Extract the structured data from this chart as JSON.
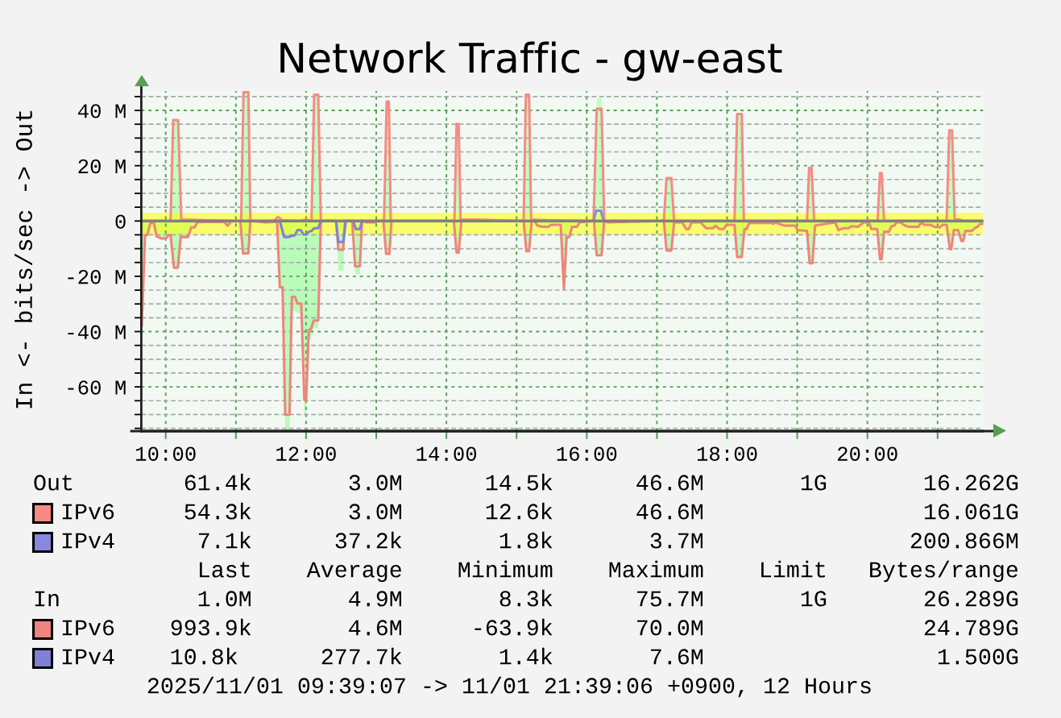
{
  "chart_data": {
    "type": "line",
    "title": "Network Traffic - gw-east",
    "ylabel": "In <- bits/sec -> Out",
    "xlim": [
      9.652,
      21.652
    ],
    "ylim": [
      -76,
      47
    ],
    "xticks": [
      {
        "value": 10,
        "label": "10:00"
      },
      {
        "value": 11,
        "label": null
      },
      {
        "value": 12,
        "label": "12:00"
      },
      {
        "value": 13,
        "label": null
      },
      {
        "value": 14,
        "label": "14:00"
      },
      {
        "value": 15,
        "label": null
      },
      {
        "value": 16,
        "label": "16:00"
      },
      {
        "value": 17,
        "label": null
      },
      {
        "value": 18,
        "label": "18:00"
      },
      {
        "value": 19,
        "label": null
      },
      {
        "value": 20,
        "label": "20:00"
      },
      {
        "value": 21,
        "label": null
      }
    ],
    "yticks": [
      {
        "value": 45,
        "label": null
      },
      {
        "value": 40,
        "label": "40 M"
      },
      {
        "value": 35,
        "label": null
      },
      {
        "value": 30,
        "label": null
      },
      {
        "value": 25,
        "label": null
      },
      {
        "value": 20,
        "label": "20 M"
      },
      {
        "value": 15,
        "label": null
      },
      {
        "value": 10,
        "label": null
      },
      {
        "value": 5,
        "label": null
      },
      0,
      {
        "value": -5,
        "label": null
      },
      {
        "value": -10,
        "label": null
      },
      {
        "value": -15,
        "label": null
      },
      {
        "value": -20,
        "label": "-20 M"
      },
      {
        "value": -25,
        "label": null
      },
      {
        "value": -30,
        "label": null
      },
      {
        "value": -35,
        "label": null
      },
      {
        "value": -40,
        "label": "-40 M"
      },
      {
        "value": -45,
        "label": null
      },
      {
        "value": -50,
        "label": null
      },
      {
        "value": -55,
        "label": null
      },
      {
        "value": -60,
        "label": "-60 M"
      },
      {
        "value": -65,
        "label": null
      },
      {
        "value": -70,
        "label": null
      },
      {
        "value": -75,
        "label": null
      }
    ],
    "grid": true,
    "legend": "bottom",
    "bands": [
      {
        "axis": "y",
        "from": -4.9,
        "to": 3.0,
        "color": "#ffff00"
      }
    ],
    "ref_lines": [
      {
        "axis": "y",
        "value": 0,
        "color": "#808080"
      }
    ],
    "series": [
      {
        "type": "area",
        "color": "#c0ffc0",
        "x": [
          10.069,
          10.107,
          10.176,
          10.222,
          11.075,
          11.109,
          11.178,
          11.206,
          11.542,
          11.599,
          11.657,
          11.909,
          12.001,
          12.078,
          12.116,
          12.173,
          12.211,
          13.111,
          13.149,
          13.18,
          13.207,
          14.114,
          14.145,
          14.175,
          14.202,
          14.412,
          15.101,
          15.132,
          15.178,
          15.208,
          15.446,
          16.097,
          16.142,
          16.211,
          16.249,
          17.099,
          17.137,
          17.206,
          17.245,
          18.106,
          18.144,
          18.209,
          18.239,
          19.139,
          19.169,
          19.203,
          19.242,
          20.145,
          20.179,
          20.202,
          20.237,
          21.129,
          21.167,
          21.206,
          21.243,
          21.32,
          21.358
        ],
        "values": [
          0,
          36.5,
          36.5,
          0.5,
          0,
          46.6,
          46.6,
          0,
          0,
          1.5,
          0.3,
          0,
          0.5,
          0,
          45.7,
          45.7,
          0,
          0,
          43.2,
          43.2,
          0,
          0,
          35.1,
          35.1,
          0.5,
          0.5,
          0,
          45.7,
          45.7,
          0.5,
          0.3,
          0,
          44.3,
          44.3,
          0,
          0,
          15.5,
          15.5,
          0,
          0,
          38.7,
          38.7,
          0,
          0,
          19.2,
          19.2,
          0,
          0,
          17.3,
          17.3,
          0,
          0,
          32.8,
          32.8,
          0.5,
          0.5,
          0
        ]
      },
      {
        "type": "area",
        "color": "#bafaba",
        "x": [
          9.659,
          9.705,
          9.736,
          9.782,
          9.831,
          9.869,
          9.935,
          10.003,
          10.041,
          10.069,
          10.118,
          10.172,
          10.214,
          10.317,
          10.363,
          10.413,
          10.451,
          10.83,
          10.884,
          10.93,
          11.063,
          11.102,
          11.178,
          11.206,
          11.427,
          11.588,
          11.626,
          11.665,
          11.703,
          11.764,
          11.798,
          11.84,
          11.878,
          11.932,
          11.975,
          12.001,
          12.039,
          12.07,
          12.108,
          12.173,
          12.211,
          12.429,
          12.46,
          12.529,
          12.556,
          12.567,
          12.659,
          12.698,
          12.71,
          12.767,
          12.797,
          12.862,
          12.977,
          13.034,
          13.103,
          13.141,
          13.187,
          13.218,
          14.106,
          14.145,
          14.175,
          14.214,
          15.101,
          15.139,
          15.178,
          15.216,
          15.254,
          15.3,
          15.369,
          15.454,
          15.491,
          15.629,
          15.675,
          15.713,
          15.752,
          15.79,
          15.859,
          15.897,
          16.103,
          16.142,
          16.211,
          16.249,
          16.307,
          17.099,
          17.137,
          17.206,
          17.245,
          17.359,
          17.417,
          17.455,
          17.493,
          17.627,
          17.665,
          17.704,
          17.799,
          17.837,
          17.888,
          17.952,
          17.991,
          18.106,
          18.144,
          18.209,
          18.247,
          18.278,
          18.316,
          18.622,
          18.66,
          18.683,
          18.821,
          18.967,
          19.005,
          19.119,
          19.139,
          19.177,
          19.215,
          19.254,
          19.311,
          19.541,
          19.587,
          19.656,
          19.731,
          19.77,
          19.866,
          19.946,
          20.018,
          20.057,
          20.141,
          20.179,
          20.202,
          20.237,
          20.305,
          20.344,
          20.382,
          20.413,
          20.474,
          20.535,
          20.592,
          20.727,
          20.765,
          20.811,
          20.899,
          20.956,
          21.033,
          21.071,
          21.129,
          21.175,
          21.194,
          21.232,
          21.293,
          21.339,
          21.366,
          21.396,
          21.485,
          21.53,
          21.568,
          21.607,
          21.65
        ],
        "values": [
          -38.0,
          -5.1,
          -5.1,
          -0.7,
          -0.7,
          -5.5,
          -6.3,
          -6.3,
          -5.1,
          -5.1,
          -16.9,
          -16.9,
          -5.8,
          -5.8,
          -2.3,
          -2.3,
          -0.4,
          -0.3,
          -1.7,
          -0.2,
          0,
          -11.7,
          -11.7,
          0,
          -0.5,
          -0.3,
          -24.0,
          -25.5,
          -75.7,
          -75.7,
          -32.8,
          -32.6,
          -33.2,
          -33.5,
          -69.7,
          -69.7,
          -43.3,
          -42.8,
          -38.7,
          -38.6,
          0,
          -0.3,
          -18.0,
          -18.0,
          -2.6,
          0,
          0,
          -18.4,
          -19.3,
          -19.3,
          0,
          -0.5,
          -0.5,
          0,
          0,
          -11.9,
          -11.9,
          0,
          0,
          -11.4,
          -11.4,
          0,
          0,
          -10.9,
          -10.9,
          0,
          0,
          -1.7,
          -2.1,
          -2.1,
          -1.4,
          -1.4,
          -24.5,
          -5.8,
          -5.8,
          -2.1,
          -2.1,
          -0.5,
          0,
          -12.4,
          -12.4,
          0,
          -0.5,
          0,
          -10.7,
          -10.7,
          -0.5,
          -0.5,
          -2.9,
          -2.9,
          -0.5,
          -0.5,
          -1.7,
          -2.6,
          -2.6,
          -1.7,
          -2.9,
          -2.9,
          -1.4,
          -1.4,
          -13.0,
          -13.0,
          -2.9,
          -2.9,
          -0.7,
          -0.7,
          -1.0,
          -0.5,
          -1.7,
          -1.7,
          -3.3,
          -3.6,
          -3.6,
          -15.3,
          -15.3,
          -1.7,
          -1.4,
          -0.5,
          -3.3,
          -2.6,
          -2.6,
          -1.9,
          -2.1,
          -0.5,
          -0.5,
          -2.9,
          -2.9,
          -13.8,
          -13.8,
          -3.9,
          -3.9,
          -1.9,
          -1.7,
          -0.5,
          -0.5,
          -1.7,
          -2.1,
          -2.1,
          -0.5,
          -1.4,
          -1.4,
          -2.1,
          -2.3,
          -1.4,
          -1.4,
          -10.2,
          -10.2,
          -3.3,
          -3.3,
          -7.2,
          -7.2,
          -3.6,
          -3.6,
          -2.6,
          -2.1,
          -1.0,
          -1.0
        ]
      },
      {
        "name": "IPv6",
        "color": "#f88a86",
        "x": [
          9.659,
          10.069,
          10.107,
          10.176,
          10.222,
          11.075,
          11.109,
          11.178,
          11.206,
          11.542,
          11.599,
          11.657,
          11.909,
          12.001,
          12.078,
          12.116,
          12.173,
          12.211,
          13.111,
          13.149,
          13.18,
          13.207,
          14.114,
          14.145,
          14.175,
          14.202,
          14.412,
          15.101,
          15.132,
          15.178,
          15.208,
          15.446,
          16.097,
          16.142,
          16.211,
          16.249,
          17.099,
          17.137,
          17.206,
          17.245,
          18.106,
          18.144,
          18.209,
          18.239,
          19.139,
          19.169,
          19.203,
          19.242,
          20.145,
          20.179,
          20.202,
          20.237,
          21.129,
          21.167,
          21.206,
          21.243,
          21.32,
          21.358,
          21.65
        ],
        "values": [
          0,
          0,
          36.5,
          36.5,
          0.5,
          0,
          46.6,
          46.6,
          0,
          0,
          1.5,
          0.3,
          0,
          0.5,
          0,
          45.7,
          45.7,
          0,
          0,
          43.2,
          43.2,
          0,
          0,
          35.1,
          35.1,
          0.5,
          0.5,
          0,
          45.7,
          45.7,
          0.5,
          0.3,
          0,
          40.6,
          40.6,
          0,
          0,
          15.5,
          15.5,
          0,
          0,
          38.7,
          38.7,
          0,
          0,
          19.2,
          19.2,
          0,
          0,
          17.3,
          17.3,
          0,
          0,
          32.8,
          32.8,
          0.5,
          0.5,
          0,
          0
        ]
      },
      {
        "name": "IPv4",
        "color": "#8888e0",
        "x": [
          16.097,
          16.133,
          16.202,
          16.241
        ],
        "values": [
          0,
          3.7,
          3.7,
          0
        ]
      },
      {
        "name": "IPv6",
        "color": "#f0847c",
        "x": [
          9.659,
          9.705,
          9.736,
          9.782,
          9.831,
          9.869,
          9.935,
          10.003,
          10.041,
          10.069,
          10.118,
          10.172,
          10.214,
          10.317,
          10.363,
          10.413,
          10.451,
          10.83,
          10.884,
          10.93,
          11.063,
          11.102,
          11.178,
          11.206,
          11.427,
          11.588,
          11.626,
          11.665,
          11.703,
          11.764,
          11.798,
          11.84,
          11.878,
          11.932,
          11.975,
          12.001,
          12.039,
          12.07,
          12.108,
          12.173,
          12.211,
          12.429,
          12.46,
          12.529,
          12.556,
          12.659,
          12.698,
          12.767,
          12.797,
          12.862,
          12.977,
          13.034,
          13.103,
          13.141,
          13.187,
          13.218,
          14.106,
          14.145,
          14.175,
          14.214,
          15.101,
          15.139,
          15.178,
          15.216,
          15.254,
          15.3,
          15.369,
          15.454,
          15.491,
          15.629,
          15.675,
          15.713,
          15.752,
          15.79,
          15.859,
          15.897,
          16.103,
          16.142,
          16.211,
          16.249,
          16.307,
          17.099,
          17.137,
          17.206,
          17.245,
          17.359,
          17.417,
          17.455,
          17.493,
          17.627,
          17.665,
          17.704,
          17.799,
          17.837,
          17.888,
          17.952,
          17.991,
          18.106,
          18.144,
          18.209,
          18.247,
          18.278,
          18.316,
          18.622,
          18.66,
          18.683,
          18.821,
          18.967,
          19.005,
          19.119,
          19.139,
          19.177,
          19.215,
          19.254,
          19.311,
          19.541,
          19.587,
          19.656,
          19.731,
          19.77,
          19.866,
          19.946,
          20.018,
          20.057,
          20.141,
          20.179,
          20.202,
          20.237,
          20.305,
          20.344,
          20.382,
          20.413,
          20.474,
          20.535,
          20.592,
          20.727,
          20.765,
          20.811,
          20.899,
          20.956,
          21.033,
          21.071,
          21.129,
          21.175,
          21.194,
          21.232,
          21.293,
          21.339,
          21.366,
          21.396,
          21.485,
          21.53,
          21.568,
          21.607,
          21.65
        ],
        "values": [
          -38.0,
          -5.1,
          -5.1,
          -0.7,
          -0.7,
          -5.5,
          -6.3,
          -6.3,
          -5.1,
          -5.1,
          -16.9,
          -16.9,
          -5.8,
          -5.8,
          -2.3,
          -2.3,
          -0.4,
          -0.3,
          -1.7,
          -0.2,
          0,
          -11.7,
          -11.7,
          0,
          -0.5,
          -0.3,
          -24.0,
          -24.0,
          -70.0,
          -70.0,
          -27.4,
          -27.4,
          -29.9,
          -29.9,
          -64.8,
          -64.8,
          -39.4,
          -39.1,
          -36.0,
          -36.0,
          0,
          0,
          -10.4,
          -10.4,
          0,
          0,
          -16.4,
          -16.4,
          0,
          -0.5,
          -0.5,
          0,
          0,
          -11.9,
          -11.9,
          0,
          0,
          -11.4,
          -11.4,
          0,
          0,
          -10.9,
          -10.9,
          0,
          0,
          -1.7,
          -2.1,
          -2.1,
          -1.4,
          -1.4,
          -24.5,
          -5.8,
          -5.8,
          -2.1,
          -2.1,
          -0.5,
          0,
          -12.4,
          -12.4,
          0,
          -0.5,
          0,
          -10.7,
          -10.7,
          -0.5,
          -0.5,
          -2.9,
          -2.9,
          -0.5,
          -0.5,
          -1.7,
          -2.6,
          -2.6,
          -1.7,
          -2.9,
          -2.9,
          -1.4,
          -1.4,
          -13.0,
          -13.0,
          -2.9,
          -2.9,
          -0.7,
          -0.7,
          -1.0,
          -0.5,
          -1.7,
          -1.7,
          -3.3,
          -3.6,
          -3.6,
          -15.3,
          -15.3,
          -1.7,
          -1.4,
          -0.5,
          -3.3,
          -2.6,
          -2.6,
          -1.9,
          -2.1,
          -0.5,
          -0.5,
          -2.9,
          -2.9,
          -13.8,
          -13.8,
          -3.9,
          -3.9,
          -1.9,
          -1.7,
          -0.5,
          -0.5,
          -1.7,
          -2.1,
          -2.1,
          -0.5,
          -1.4,
          -1.4,
          -2.1,
          -2.3,
          -1.4,
          -1.4,
          -10.2,
          -10.2,
          -3.3,
          -3.3,
          -7.2,
          -7.2,
          -3.6,
          -3.6,
          -2.6,
          -2.1,
          -1.0,
          -1.0
        ]
      },
      {
        "name": "IPv4",
        "color": "#8080d8",
        "x": [
          11.626,
          11.688,
          11.752,
          11.791,
          11.84,
          11.878,
          11.924,
          11.963,
          12.001,
          12.039,
          12.078,
          12.116,
          12.173,
          12.211,
          12.384,
          12.429,
          12.46,
          12.529,
          12.567,
          12.671,
          12.71,
          12.767,
          12.797
        ],
        "values": [
          0,
          -5.8,
          -5.8,
          -5.4,
          -5.2,
          -3.3,
          -3.3,
          -4.9,
          -4.9,
          -3.9,
          -3.6,
          -2.6,
          -2.6,
          0,
          0,
          -0.3,
          -7.6,
          -7.6,
          0,
          0,
          -2.9,
          -2.9,
          0
        ]
      }
    ],
    "annotations": [
      "Out",
      "61.4k       3.0M      14.5k      46.6M       1G       16.262G",
      "54.3k       3.0M      12.6k      46.6M                16.061G",
      "7.1k      37.2k       1.8k       3.7M               200.866M",
      "Last    Average    Minimum    Maximum    Limit   Bytes/range",
      "In",
      "1.0M       4.9M       8.3k      75.7M       1G       26.289G",
      "993.9k       4.6M     -63.9k      70.0M                24.789G",
      "10.8k      277.7k       1.4k       7.6M                 1.500G",
      "2025/11/01 09:39:07 -> 11/01 21:39:06 +0900, 12 Hours"
    ]
  }
}
